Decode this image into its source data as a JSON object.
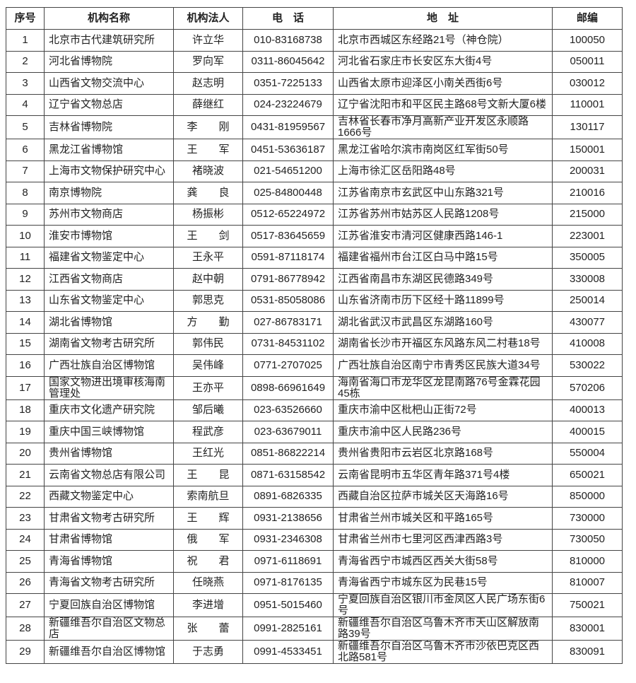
{
  "headers": {
    "index": "序号",
    "name": "机构名称",
    "person": "机构法人",
    "phone": "电　话",
    "address": "地　址",
    "zip": "邮编"
  },
  "rows": [
    {
      "index": "1",
      "name": "北京市古代建筑研究所",
      "person": "许立华",
      "phone": "010-83168738",
      "address": "北京市西城区东经路21号（神仓院）",
      "zip": "100050"
    },
    {
      "index": "2",
      "name": "河北省博物院",
      "person": "罗向军",
      "phone": "0311-86045642",
      "address": "河北省石家庄市长安区东大街4号",
      "zip": "050011"
    },
    {
      "index": "3",
      "name": "山西省文物交流中心",
      "person": "赵志明",
      "phone": "0351-7225133",
      "address": "山西省太原市迎泽区小南关西街6号",
      "zip": "030012"
    },
    {
      "index": "4",
      "name": "辽宁省文物总店",
      "person": "薛继红",
      "phone": "024-23224679",
      "address": "辽宁省沈阳市和平区民主路68号文新大厦6楼",
      "zip": "110001"
    },
    {
      "index": "5",
      "name": "吉林省博物院",
      "person": "李　　刚",
      "phone": "0431-81959567",
      "address": "吉林省长春市净月高新产业开发区永顺路1666号",
      "zip": "130117"
    },
    {
      "index": "6",
      "name": "黑龙江省博物馆",
      "person": "王　　军",
      "phone": "0451-53636187",
      "address": "黑龙江省哈尔滨市南岗区红军街50号",
      "zip": "150001"
    },
    {
      "index": "7",
      "name": "上海市文物保护研究中心",
      "person": "褚晓波",
      "phone": "021-54651200",
      "address": "上海市徐汇区岳阳路48号",
      "zip": "200031"
    },
    {
      "index": "8",
      "name": "南京博物院",
      "person": "龚　　良",
      "phone": "025-84800448",
      "address": "江苏省南京市玄武区中山东路321号",
      "zip": "210016"
    },
    {
      "index": "9",
      "name": "苏州市文物商店",
      "person": "杨振彬",
      "phone": "0512-65224972",
      "address": "江苏省苏州市姑苏区人民路1208号",
      "zip": "215000"
    },
    {
      "index": "10",
      "name": "淮安市博物馆",
      "person": "王　　剑",
      "phone": "0517-83645659",
      "address": "江苏省淮安市清河区健康西路146-1",
      "zip": "223001"
    },
    {
      "index": "11",
      "name": "福建省文物鉴定中心",
      "person": "王永平",
      "phone": "0591-87118174",
      "address": "福建省福州市台江区白马中路15号",
      "zip": "350005"
    },
    {
      "index": "12",
      "name": "江西省文物商店",
      "person": "赵中朝",
      "phone": "0791-86778942",
      "address": "江西省南昌市东湖区民德路349号",
      "zip": "330008"
    },
    {
      "index": "13",
      "name": "山东省文物鉴定中心",
      "person": "郭思克",
      "phone": "0531-85058086",
      "address": "山东省济南市历下区经十路11899号",
      "zip": "250014"
    },
    {
      "index": "14",
      "name": "湖北省博物馆",
      "person": "方　　勤",
      "phone": "027-86783171",
      "address": "湖北省武汉市武昌区东湖路160号",
      "zip": "430077"
    },
    {
      "index": "15",
      "name": "湖南省文物考古研究所",
      "person": "郭伟民",
      "phone": "0731-84531102",
      "address": "湖南省长沙市开福区东风路东风二村巷18号",
      "zip": "410008"
    },
    {
      "index": "16",
      "name": "广西壮族自治区博物馆",
      "person": "吴伟峰",
      "phone": "0771-2707025",
      "address": "广西壮族自治区南宁市青秀区民族大道34号",
      "zip": "530022"
    },
    {
      "index": "17",
      "name": "国家文物进出境审核海南管理处",
      "person": "王亦平",
      "phone": "0898-66961649",
      "address": "海南省海口市龙华区龙昆南路76号金霖花园45栋",
      "zip": "570206"
    },
    {
      "index": "18",
      "name": "重庆市文化遗产研究院",
      "person": "邹后曦",
      "phone": "023-63526660",
      "address": "重庆市渝中区枇杷山正街72号",
      "zip": "400013"
    },
    {
      "index": "19",
      "name": "重庆中国三峡博物馆",
      "person": "程武彦",
      "phone": "023-63679011",
      "address": "重庆市渝中区人民路236号",
      "zip": "400015"
    },
    {
      "index": "20",
      "name": "贵州省博物馆",
      "person": "王红光",
      "phone": "0851-86822214",
      "address": "贵州省贵阳市云岩区北京路168号",
      "zip": "550004"
    },
    {
      "index": "21",
      "name": "云南省文物总店有限公司",
      "person": "王　　昆",
      "phone": "0871-63158542",
      "address": "云南省昆明市五华区青年路371号4楼",
      "zip": "650021"
    },
    {
      "index": "22",
      "name": "西藏文物鉴定中心",
      "person": "索南航旦",
      "phone": "0891-6826335",
      "address": "西藏自治区拉萨市城关区天海路16号",
      "zip": "850000"
    },
    {
      "index": "23",
      "name": "甘肃省文物考古研究所",
      "person": "王　　辉",
      "phone": "0931-2138656",
      "address": "甘肃省兰州市城关区和平路165号",
      "zip": "730000"
    },
    {
      "index": "24",
      "name": "甘肃省博物馆",
      "person": "俄　　军",
      "phone": "0931-2346308",
      "address": "甘肃省兰州市七里河区西津西路3号",
      "zip": "730050"
    },
    {
      "index": "25",
      "name": "青海省博物馆",
      "person": "祝　　君",
      "phone": "0971-6118691",
      "address": "青海省西宁市城西区西关大街58号",
      "zip": "810000"
    },
    {
      "index": "26",
      "name": "青海省文物考古研究所",
      "person": "任晓燕",
      "phone": "0971-8176135",
      "address": "青海省西宁市城东区为民巷15号",
      "zip": "810007"
    },
    {
      "index": "27",
      "name": "宁夏回族自治区博物馆",
      "person": "李进增",
      "phone": "0951-5015460",
      "address": "宁夏回族自治区银川市金凤区人民广场东街6号",
      "zip": "750021"
    },
    {
      "index": "28",
      "name": "新疆维吾尔自治区文物总店",
      "person": "张　　蕾",
      "phone": "0991-2825161",
      "address": "新疆维吾尔自治区乌鲁木齐市天山区解放南路39号",
      "zip": "830001"
    },
    {
      "index": "29",
      "name": "新疆维吾尔自治区博物馆",
      "person": "于志勇",
      "phone": "0991-4533451",
      "address": "新疆维吾尔自治区乌鲁木齐市沙依巴克区西北路581号",
      "zip": "830091"
    }
  ]
}
